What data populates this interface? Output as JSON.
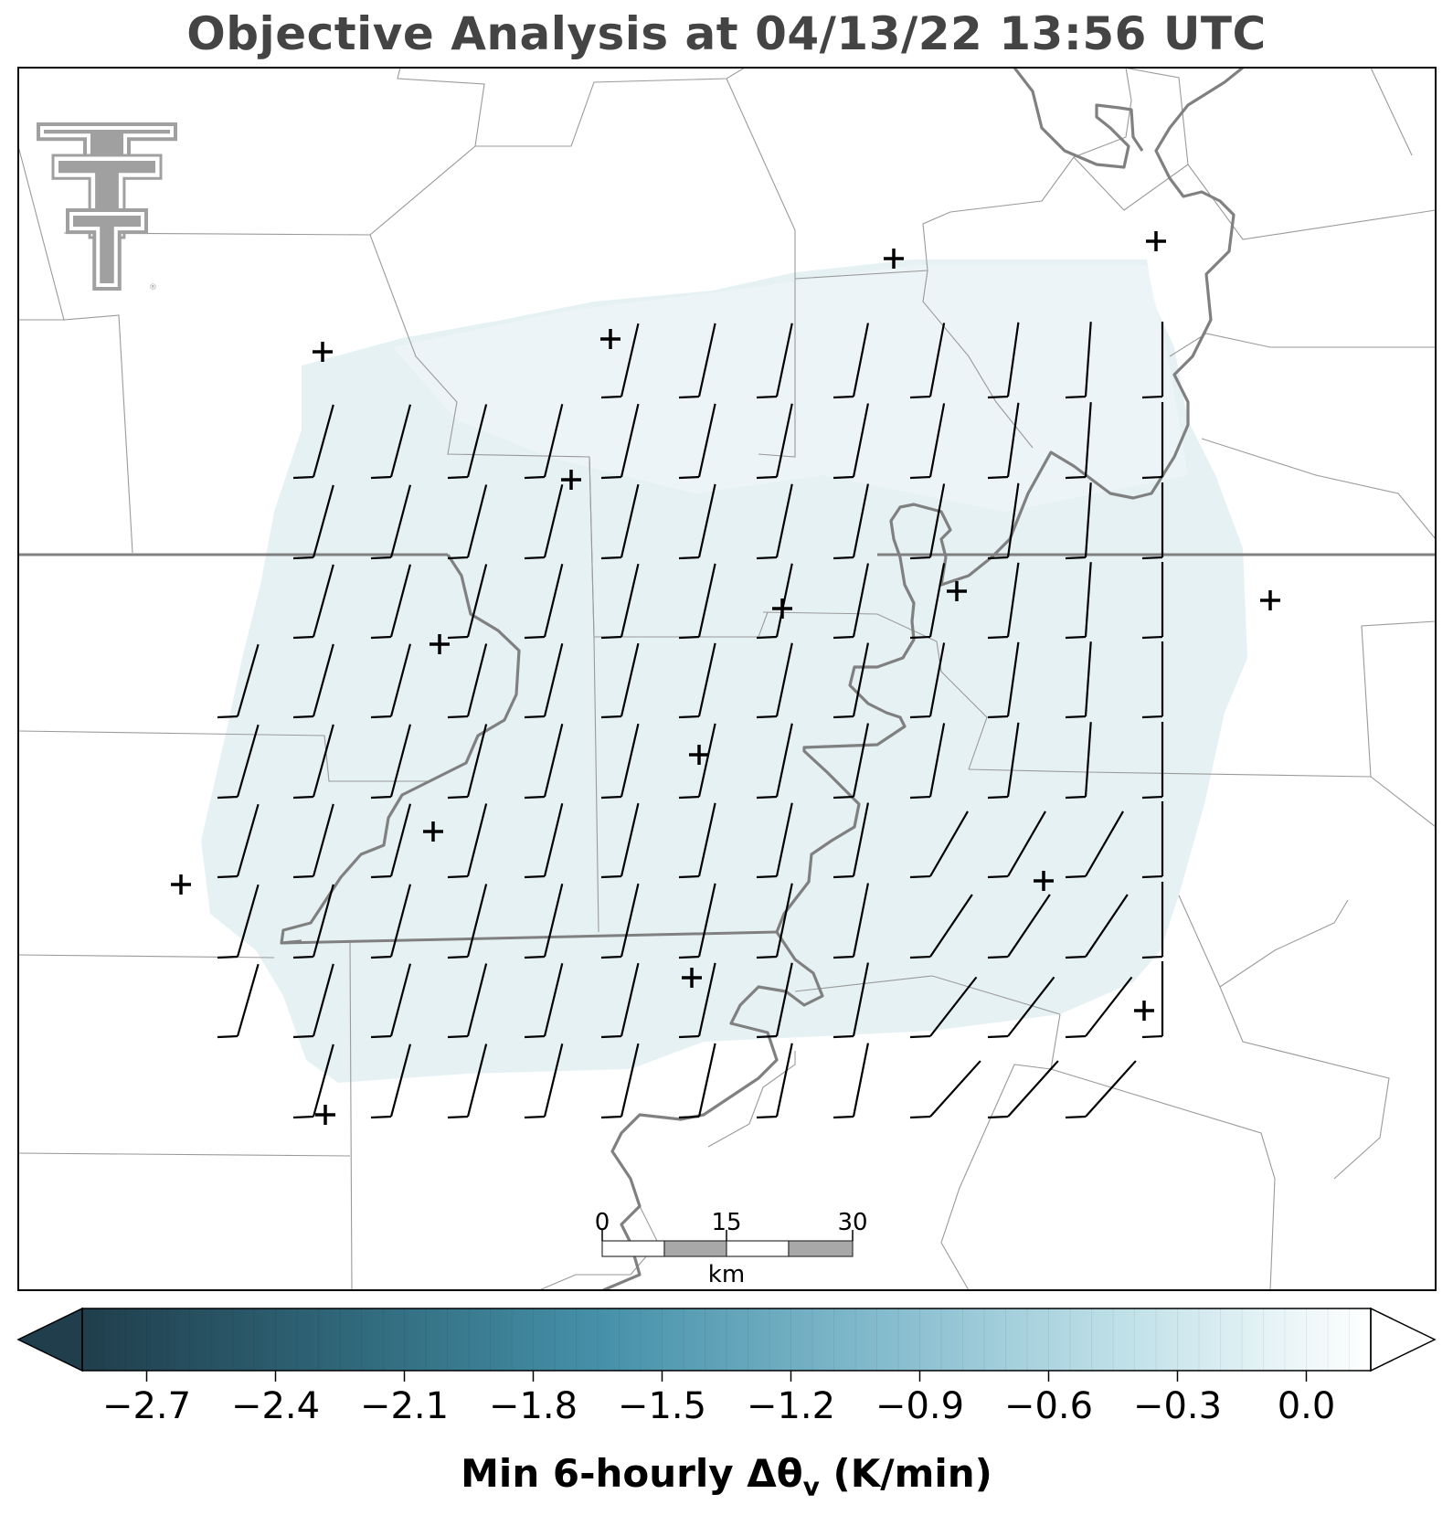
{
  "title": "Objective Analysis at 04/13/22 13:56 UTC",
  "logo": {
    "name": "texas-tech-double-t-logo",
    "text": "TT",
    "mark": "®"
  },
  "map": {
    "background": "#ffffff",
    "field_color": "#e6f1f4",
    "field_color_light": "#edf5f7",
    "boundary_color": "#9a9a9a",
    "state_line_color": "#808080",
    "river_color": "#808080",
    "barb_color": "#000000",
    "station_marker": "+",
    "barb_direction_note": "winds from the south-southwest, ~5 kt barbs"
  },
  "scale_bar": {
    "labels": [
      "0",
      "15",
      "30"
    ],
    "unit": "km"
  },
  "colorbar": {
    "min": -2.85,
    "max": 0.15,
    "extend": "both",
    "ticks": [
      "−2.7",
      "−2.4",
      "−2.1",
      "−1.8",
      "−1.5",
      "−1.2",
      "−0.9",
      "−0.6",
      "−0.3",
      "0.0"
    ],
    "tick_values": [
      -2.7,
      -2.4,
      -2.1,
      -1.8,
      -1.5,
      -1.2,
      -0.9,
      -0.6,
      -0.3,
      0.0
    ],
    "colormap_stops": [
      "#203e4c",
      "#2f6678",
      "#4590a8",
      "#7eb7ca",
      "#bddfe7",
      "#ffffff"
    ],
    "label_main": "Min 6-hourly Δθ",
    "label_sub": "v",
    "label_units": " (K/min)"
  }
}
